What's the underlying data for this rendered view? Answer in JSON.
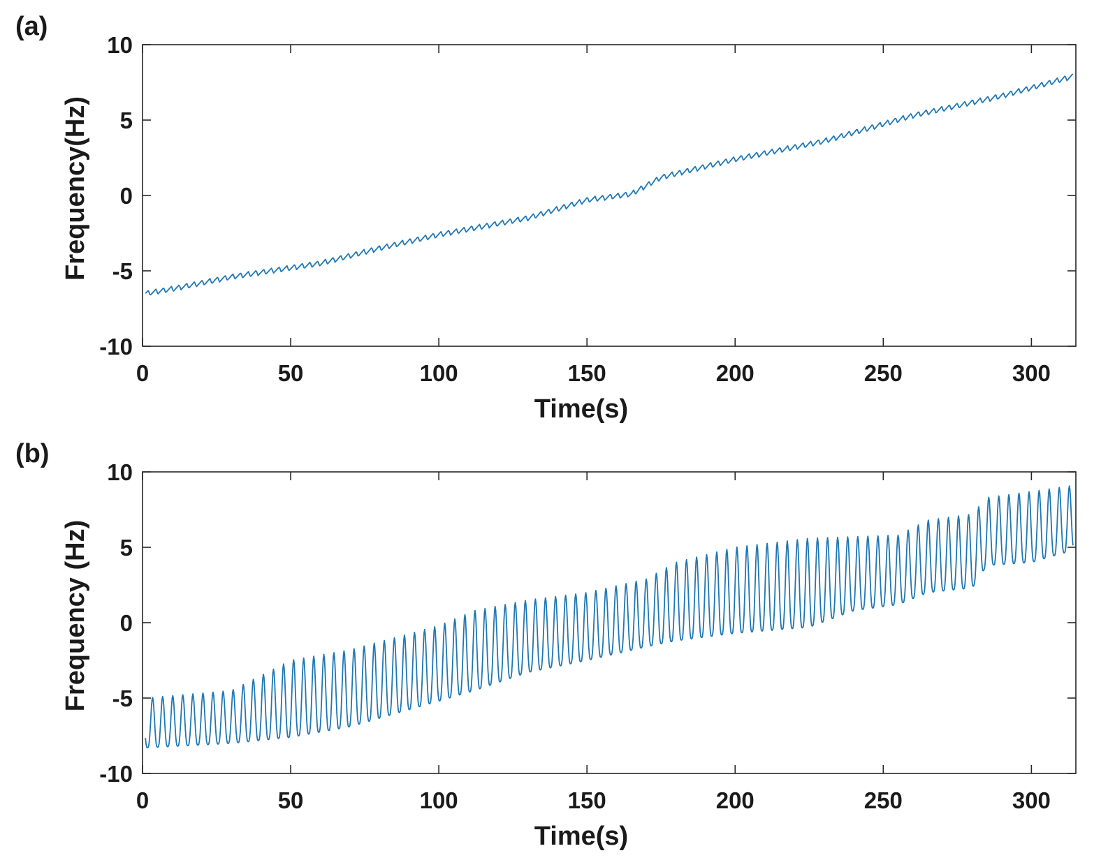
{
  "figure": {
    "panels": [
      {
        "label": "(a)"
      },
      {
        "label": "(b)"
      }
    ]
  },
  "chart_data": [
    {
      "type": "line",
      "panel_label": "(a)",
      "xlabel": "Time(s)",
      "ylabel": "Frequency(Hz)",
      "xlim": [
        0,
        315
      ],
      "ylim": [
        -10,
        10
      ],
      "xticks": [
        0,
        50,
        100,
        150,
        200,
        250,
        300
      ],
      "yticks": [
        -10,
        -5,
        0,
        5,
        10
      ],
      "grid": false,
      "line_color": "#1f77b4",
      "series": [
        {
          "trend_points": [
            [
              1,
              -6.5
            ],
            [
              10,
              -6.2
            ],
            [
              30,
              -5.4
            ],
            [
              60,
              -4.5
            ],
            [
              80,
              -3.5
            ],
            [
              100,
              -2.6
            ],
            [
              130,
              -1.5
            ],
            [
              150,
              -0.3
            ],
            [
              165,
              0.1
            ],
            [
              175,
              1.2
            ],
            [
              200,
              2.4
            ],
            [
              230,
              3.6
            ],
            [
              260,
              5.3
            ],
            [
              290,
              6.6
            ],
            [
              314,
              7.9
            ]
          ],
          "oscillation_amplitude": 0.35,
          "oscillation_period_s": 2.6
        }
      ]
    },
    {
      "type": "line",
      "panel_label": "(b)",
      "xlabel": "Time(s)",
      "ylabel": "Frequency (Hz)",
      "xlim": [
        0,
        315
      ],
      "ylim": [
        -10,
        10
      ],
      "xticks": [
        0,
        50,
        100,
        150,
        200,
        250,
        300
      ],
      "yticks": [
        -10,
        -5,
        0,
        5,
        10
      ],
      "grid": false,
      "line_color": "#1f77b4",
      "series": [
        {
          "envelope_points": [
            [
              1,
              -8.3,
              -5.0
            ],
            [
              30,
              -8.0,
              -4.5
            ],
            [
              50,
              -7.6,
              -2.5
            ],
            [
              70,
              -6.9,
              -1.8
            ],
            [
              100,
              -5.2,
              -0.2
            ],
            [
              112,
              -4.5,
              0.8
            ],
            [
              130,
              -3.3,
              1.5
            ],
            [
              150,
              -2.5,
              2.0
            ],
            [
              170,
              -1.6,
              2.9
            ],
            [
              180,
              -1.2,
              4.0
            ],
            [
              200,
              -0.7,
              5.0
            ],
            [
              225,
              -0.3,
              5.6
            ],
            [
              240,
              0.8,
              5.7
            ],
            [
              255,
              1.2,
              5.8
            ],
            [
              265,
              2.0,
              6.8
            ],
            [
              280,
              2.3,
              7.2
            ],
            [
              285,
              3.8,
              8.3
            ],
            [
              300,
              4.0,
              8.7
            ],
            [
              314,
              4.8,
              9.1
            ]
          ],
          "oscillation_period_s": 3.4
        }
      ]
    }
  ]
}
